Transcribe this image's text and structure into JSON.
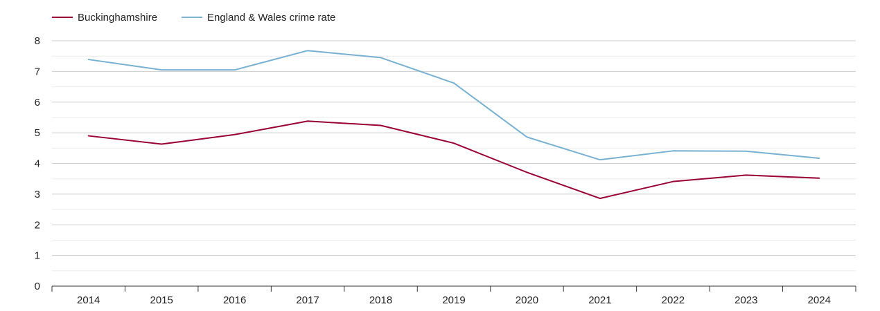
{
  "chart_data": {
    "type": "line",
    "title": "",
    "xlabel": "",
    "ylabel": "",
    "categories": [
      "2014",
      "2015",
      "2016",
      "2017",
      "2018",
      "2019",
      "2020",
      "2021",
      "2022",
      "2023",
      "2024"
    ],
    "ylim": [
      0,
      8
    ],
    "yticks": [
      "0",
      "1",
      "2",
      "3",
      "4",
      "5",
      "6",
      "7",
      "8"
    ],
    "grid": true,
    "legend_position": "top-left",
    "series": [
      {
        "name": "Buckinghamshire",
        "color": "#990033",
        "values": [
          4.9,
          4.63,
          4.94,
          5.38,
          5.24,
          4.66,
          3.71,
          2.86,
          3.41,
          3.62,
          3.52
        ]
      },
      {
        "name": "England & Wales crime rate",
        "color": "#77b0d0",
        "values": [
          7.39,
          7.05,
          7.05,
          7.68,
          7.45,
          6.62,
          4.86,
          4.12,
          4.41,
          4.4,
          4.17
        ]
      }
    ]
  }
}
